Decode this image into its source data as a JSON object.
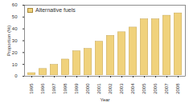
{
  "chart_data": {
    "type": "bar",
    "x_label": "Year",
    "y_label": "Proportion (%)",
    "categories": [
      "1995",
      "1996",
      "1997",
      "1998",
      "1999",
      "2000",
      "2001",
      "2002",
      "2003",
      "2004",
      "2005",
      "2006",
      "2007",
      "2008"
    ],
    "series": [
      {
        "name": "Alternative fuels",
        "color": "#f0d27c",
        "values": [
          3.5,
          7,
          10.5,
          15,
          22,
          24,
          30,
          35,
          38,
          42,
          49,
          49,
          52,
          54
        ]
      }
    ],
    "ylim": [
      0,
      60
    ],
    "yticks": [
      0,
      10,
      20,
      30,
      40,
      50,
      60
    ],
    "grid": false,
    "legend": "top-left"
  }
}
